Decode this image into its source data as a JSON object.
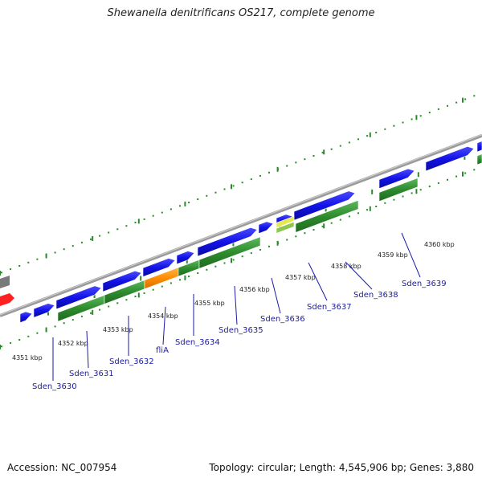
{
  "title": "Shewanella denitrificans OS217, complete genome",
  "footer": {
    "accession": "Accession: NC_007954",
    "summary": "Topology: circular; Length: 4,545,906 bp; Genes: 3,880"
  },
  "kbp_labels": [
    "4351 kbp",
    "4352 kbp",
    "4353 kbp",
    "4354 kbp",
    "4355 kbp",
    "4356 kbp",
    "4357 kbp",
    "4358 kbp",
    "4359 kbp",
    "4360 kbp"
  ],
  "gene_labels": [
    "Sden_3630",
    "Sden_3631",
    "Sden_3632",
    "fliA",
    "Sden_3634",
    "Sden_3635",
    "Sden_3636",
    "Sden_3637",
    "Sden_3638",
    "Sden_3639"
  ],
  "colors": {
    "forward": "#1010e0",
    "reverse": "#2e8b2e",
    "highlight": "#ff8c00",
    "rna": "#c8d850",
    "backbone": "#888888",
    "tick": "#2a8a2a",
    "label": "#1a1aa8"
  }
}
